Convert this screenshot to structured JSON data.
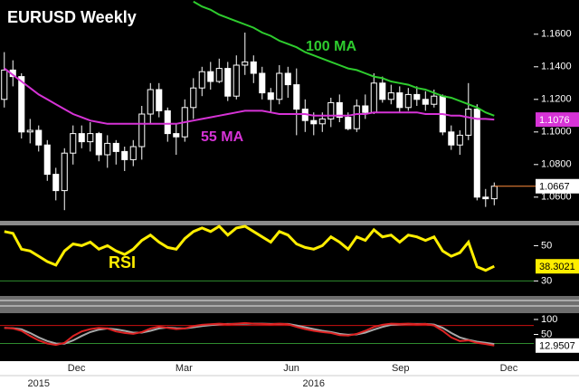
{
  "x_axis": {
    "xlim": [
      -0.5,
      61.6
    ],
    "xticks": [
      {
        "value": 8.4,
        "label": "Dec"
      },
      {
        "value": 20.9,
        "label": "Mar"
      },
      {
        "value": 33.4,
        "label": "Jun"
      },
      {
        "value": 46.1,
        "label": "Sep"
      },
      {
        "value": 58.7,
        "label": "Dec"
      }
    ],
    "year_labels": [
      {
        "value": 4,
        "label": "2015"
      },
      {
        "value": 36,
        "label": "2016"
      }
    ]
  },
  "chart_data": [
    {
      "type": "candlestick",
      "title": "EURUSD Weekly",
      "up_color": "#000000",
      "down_color": "#ffffff",
      "open": [
        1.12,
        1.138,
        1.134,
        1.1,
        1.101,
        1.092,
        1.074,
        1.064,
        1.087,
        1.099,
        1.094,
        1.099,
        1.086,
        1.093,
        1.088,
        1.083,
        1.091,
        1.111,
        1.126,
        1.113,
        1.099,
        1.097,
        1.115,
        1.127,
        1.137,
        1.131,
        1.139,
        1.122,
        1.141,
        1.143,
        1.136,
        1.124,
        1.12,
        1.136,
        1.129,
        1.114,
        1.107,
        1.105,
        1.108,
        1.118,
        1.109,
        1.102,
        1.116,
        1.112,
        1.13,
        1.12,
        1.124,
        1.115,
        1.123,
        1.12,
        1.117,
        1.122,
        1.1,
        1.092,
        1.098,
        1.114,
        1.06,
        1.059
      ],
      "high": [
        1.149,
        1.144,
        1.136,
        1.108,
        1.104,
        1.095,
        1.078,
        1.09,
        1.104,
        1.104,
        1.106,
        1.1,
        1.098,
        1.095,
        1.091,
        1.095,
        1.116,
        1.13,
        1.13,
        1.115,
        1.105,
        1.12,
        1.133,
        1.14,
        1.143,
        1.145,
        1.143,
        1.147,
        1.161,
        1.147,
        1.14,
        1.127,
        1.141,
        1.14,
        1.139,
        1.12,
        1.112,
        1.112,
        1.121,
        1.123,
        1.112,
        1.12,
        1.123,
        1.136,
        1.134,
        1.129,
        1.128,
        1.127,
        1.128,
        1.125,
        1.126,
        1.123,
        1.104,
        1.101,
        1.13,
        1.117,
        1.065,
        1.069
      ],
      "low": [
        1.115,
        1.128,
        1.096,
        1.093,
        1.088,
        1.07,
        1.058,
        1.052,
        1.08,
        1.09,
        1.088,
        1.082,
        1.078,
        1.08,
        1.076,
        1.079,
        1.083,
        1.105,
        1.109,
        1.094,
        1.086,
        1.094,
        1.108,
        1.122,
        1.126,
        1.13,
        1.119,
        1.12,
        1.135,
        1.13,
        1.12,
        1.112,
        1.117,
        1.121,
        1.098,
        1.1,
        1.098,
        1.1,
        1.103,
        1.106,
        1.101,
        1.1,
        1.108,
        1.111,
        1.118,
        1.117,
        1.112,
        1.113,
        1.116,
        1.113,
        1.115,
        1.098,
        1.089,
        1.086,
        1.095,
        1.058,
        1.054,
        1.055
      ],
      "close": [
        1.138,
        1.134,
        1.1,
        1.101,
        1.092,
        1.074,
        1.064,
        1.087,
        1.099,
        1.094,
        1.099,
        1.086,
        1.093,
        1.088,
        1.083,
        1.091,
        1.111,
        1.126,
        1.113,
        1.099,
        1.097,
        1.115,
        1.127,
        1.137,
        1.131,
        1.139,
        1.122,
        1.141,
        1.143,
        1.136,
        1.124,
        1.12,
        1.136,
        1.129,
        1.114,
        1.107,
        1.105,
        1.108,
        1.118,
        1.109,
        1.102,
        1.116,
        1.112,
        1.13,
        1.12,
        1.124,
        1.115,
        1.123,
        1.12,
        1.117,
        1.122,
        1.1,
        1.092,
        1.098,
        1.114,
        1.06,
        1.059,
        1.0667
      ],
      "series": [
        {
          "name": "100 MA",
          "color": "#2ecc2e",
          "values": [
            null,
            null,
            null,
            null,
            null,
            null,
            null,
            null,
            null,
            null,
            null,
            null,
            null,
            null,
            null,
            null,
            null,
            null,
            null,
            null,
            null,
            null,
            1.18,
            1.177,
            1.175,
            1.172,
            1.17,
            1.168,
            1.166,
            1.164,
            1.161,
            1.159,
            1.156,
            1.154,
            1.152,
            1.149,
            1.147,
            1.145,
            1.143,
            1.141,
            1.139,
            1.138,
            1.136,
            1.134,
            1.133,
            1.131,
            1.13,
            1.129,
            1.127,
            1.126,
            1.124,
            1.122,
            1.121,
            1.119,
            1.117,
            1.115,
            1.112,
            1.11
          ]
        },
        {
          "name": "55 MA",
          "color": "#d633d6",
          "values": [
            1.139,
            1.135,
            1.131,
            1.127,
            1.123,
            1.12,
            1.117,
            1.114,
            1.111,
            1.109,
            1.107,
            1.106,
            1.105,
            1.105,
            1.105,
            1.105,
            1.105,
            1.105,
            1.105,
            1.105,
            1.105,
            1.106,
            1.107,
            1.108,
            1.109,
            1.11,
            1.111,
            1.112,
            1.113,
            1.113,
            1.113,
            1.112,
            1.111,
            1.111,
            1.111,
            1.111,
            1.11,
            1.11,
            1.11,
            1.11,
            1.11,
            1.111,
            1.111,
            1.112,
            1.112,
            1.112,
            1.112,
            1.112,
            1.112,
            1.111,
            1.111,
            1.111,
            1.11,
            1.11,
            1.109,
            1.108,
            1.108,
            1.1076
          ]
        }
      ],
      "ylim": [
        1.046,
        1.181
      ],
      "yticks": [
        {
          "value": 1.16,
          "label": "1.1600"
        },
        {
          "value": 1.14,
          "label": "1.1400"
        },
        {
          "value": 1.12,
          "label": "1.1200"
        },
        {
          "value": 1.1,
          "label": "1.1000"
        },
        {
          "value": 1.08,
          "label": "1.0800"
        },
        {
          "value": 1.06,
          "label": "1.0600"
        }
      ]
    },
    {
      "type": "line",
      "title": "RSI",
      "ylim": [
        22,
        61
      ],
      "yticks": [
        50,
        30
      ],
      "hlines": [
        {
          "value": 30,
          "color": "#2e8b2e"
        }
      ],
      "series": [
        {
          "color": "#ffee00",
          "values": [
            58,
            57,
            48,
            47,
            44,
            41,
            39,
            47,
            51,
            50,
            52,
            48,
            50,
            47,
            45,
            48,
            53,
            56,
            52,
            49,
            48,
            54,
            58,
            60,
            58,
            61,
            56,
            60,
            61,
            58,
            55,
            52,
            58,
            56,
            51,
            49,
            48,
            50,
            55,
            52,
            48,
            55,
            53,
            59,
            55,
            56,
            52,
            56,
            55,
            53,
            55,
            47,
            44,
            46,
            52,
            38,
            36,
            38.3021
          ]
        }
      ]
    },
    {
      "type": "line",
      "ylim": [
        -36,
        118
      ],
      "yticks": [
        100,
        50
      ],
      "hlines": [
        {
          "value": 80,
          "color": "#cc1111"
        },
        {
          "value": 20,
          "color": "#2e8b2e"
        }
      ],
      "series": [
        {
          "color": "#a8a8a8",
          "values": [
            72,
            71,
            67,
            55,
            40,
            28,
            20,
            19,
            30,
            45,
            58,
            66,
            70,
            67,
            62,
            56,
            56,
            62,
            70,
            73,
            71,
            70,
            74,
            78,
            81,
            84,
            85,
            85,
            86,
            86,
            86,
            85,
            85,
            85,
            80,
            74,
            68,
            62,
            58,
            52,
            49,
            50,
            56,
            66,
            75,
            82,
            84,
            85,
            85,
            85,
            83,
            72,
            55,
            40,
            32,
            26,
            22,
            18
          ]
        },
        {
          "color": "#dd2222",
          "values": [
            72,
            70,
            62,
            45,
            30,
            20,
            15,
            22,
            45,
            60,
            68,
            72,
            70,
            60,
            55,
            52,
            58,
            70,
            76,
            72,
            68,
            70,
            78,
            82,
            84,
            86,
            84,
            86,
            88,
            86,
            85,
            84,
            86,
            84,
            75,
            68,
            62,
            58,
            55,
            48,
            46,
            52,
            62,
            75,
            82,
            86,
            85,
            86,
            84,
            85,
            80,
            62,
            40,
            28,
            30,
            22,
            18,
            12.9507
          ]
        }
      ]
    }
  ]
}
